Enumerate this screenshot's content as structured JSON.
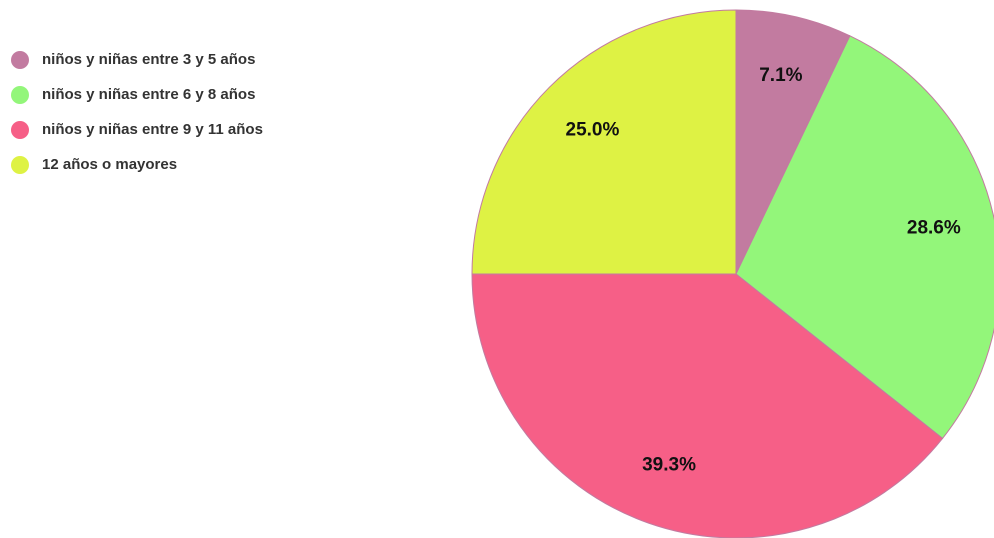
{
  "chart_data": {
    "type": "pie",
    "categories": [
      "niños y niñas entre 3 y 5 años",
      "niños y niñas entre 6 y 8 años",
      "niños y niñas entre 9 y 11 años",
      "12 años o mayores"
    ],
    "values": [
      7.1,
      28.6,
      39.3,
      25.0
    ],
    "value_labels": [
      "7.1%",
      "28.6%",
      "39.3%",
      "25.0%"
    ],
    "colors": [
      "#c27ba0",
      "#93f67a",
      "#f65f87",
      "#def244"
    ],
    "legend": "top-left"
  }
}
